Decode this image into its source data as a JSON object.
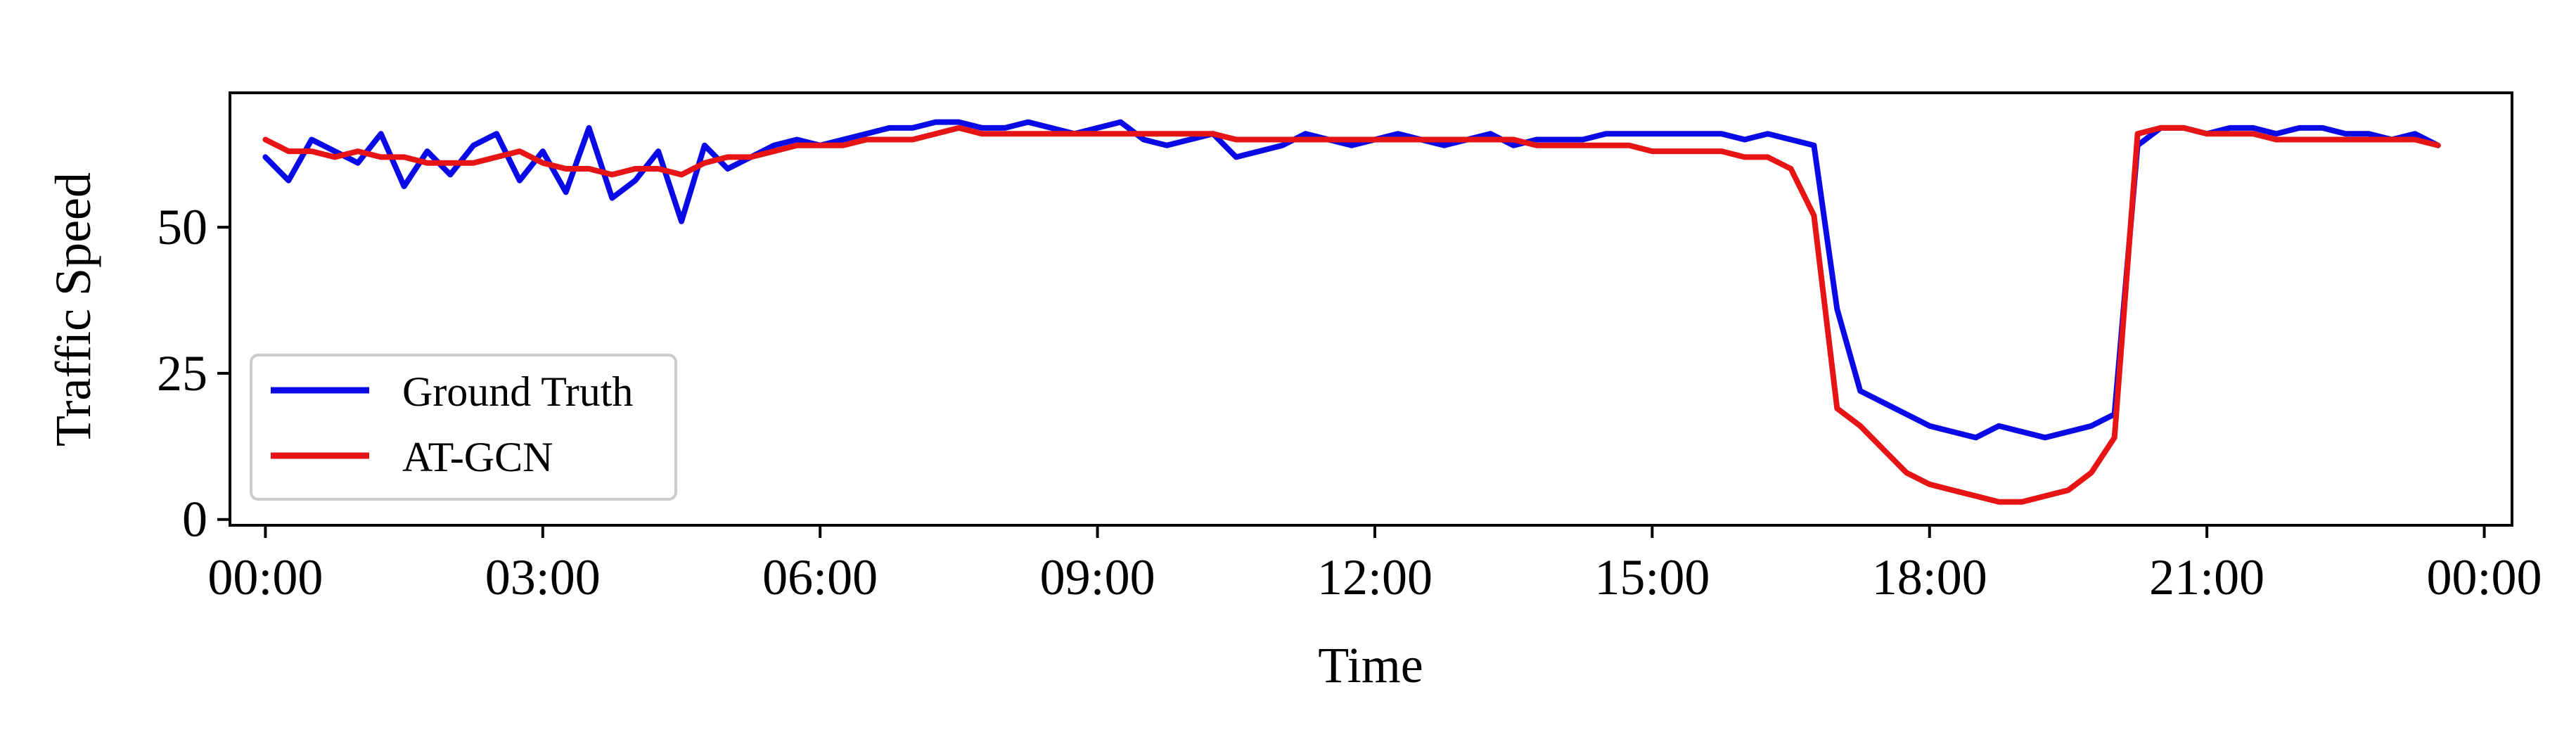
{
  "chart_data": {
    "type": "line",
    "title": "",
    "xlabel": "Time",
    "ylabel": "Traffic Speed",
    "x_unit": "time of day (HH:MM)",
    "xlim": [
      "-00:23",
      "24:18"
    ],
    "ylim": [
      -1,
      73
    ],
    "x_ticks": [
      "00:00",
      "03:00",
      "06:00",
      "09:00",
      "12:00",
      "15:00",
      "18:00",
      "21:00",
      "00:00"
    ],
    "y_ticks": [
      0,
      25,
      50
    ],
    "grid": false,
    "legend": {
      "position": "lower-left",
      "entries": [
        "Ground Truth",
        "AT-GCN"
      ]
    },
    "x": [
      "00:00",
      "00:15",
      "00:30",
      "00:45",
      "01:00",
      "01:15",
      "01:30",
      "01:45",
      "02:00",
      "02:15",
      "02:30",
      "02:45",
      "03:00",
      "03:15",
      "03:30",
      "03:45",
      "04:00",
      "04:15",
      "04:30",
      "04:45",
      "05:00",
      "05:15",
      "05:30",
      "05:45",
      "06:00",
      "06:15",
      "06:30",
      "06:45",
      "07:00",
      "07:15",
      "07:30",
      "07:45",
      "08:00",
      "08:15",
      "08:30",
      "08:45",
      "09:00",
      "09:15",
      "09:30",
      "09:45",
      "10:00",
      "10:15",
      "10:30",
      "10:45",
      "11:00",
      "11:15",
      "11:30",
      "11:45",
      "12:00",
      "12:15",
      "12:30",
      "12:45",
      "13:00",
      "13:15",
      "13:30",
      "13:45",
      "14:00",
      "14:15",
      "14:30",
      "14:45",
      "15:00",
      "15:15",
      "15:30",
      "15:45",
      "16:00",
      "16:15",
      "16:30",
      "16:45",
      "17:00",
      "17:15",
      "17:30",
      "17:45",
      "18:00",
      "18:15",
      "18:30",
      "18:45",
      "19:00",
      "19:15",
      "19:30",
      "19:45",
      "20:00",
      "20:15",
      "20:30",
      "20:45",
      "21:00",
      "21:15",
      "21:30",
      "21:45",
      "22:00",
      "22:15",
      "22:30",
      "22:45",
      "23:00",
      "23:15",
      "23:30"
    ],
    "series": [
      {
        "name": "Ground Truth",
        "color": "#0a0ae6",
        "values": [
          62,
          58,
          65,
          63,
          61,
          66,
          57,
          63,
          59,
          64,
          66,
          58,
          63,
          56,
          67,
          55,
          58,
          63,
          51,
          64,
          60,
          62,
          64,
          65,
          64,
          65,
          66,
          67,
          67,
          68,
          68,
          67,
          67,
          68,
          67,
          66,
          67,
          68,
          65,
          64,
          65,
          66,
          62,
          63,
          64,
          66,
          65,
          64,
          65,
          66,
          65,
          64,
          65,
          66,
          64,
          65,
          65,
          65,
          66,
          66,
          66,
          66,
          66,
          66,
          65,
          66,
          65,
          64,
          36,
          22,
          20,
          18,
          16,
          15,
          14,
          16,
          15,
          14,
          15,
          16,
          18,
          64,
          67,
          67,
          66,
          67,
          67,
          66,
          67,
          67,
          66,
          66,
          65,
          66,
          64
        ]
      },
      {
        "name": "AT-GCN",
        "color": "#e61414",
        "values": [
          65,
          63,
          63,
          62,
          63,
          62,
          62,
          61,
          61,
          61,
          62,
          63,
          61,
          60,
          60,
          59,
          60,
          60,
          59,
          61,
          62,
          62,
          63,
          64,
          64,
          64,
          65,
          65,
          65,
          66,
          67,
          66,
          66,
          66,
          66,
          66,
          66,
          66,
          66,
          66,
          66,
          66,
          65,
          65,
          65,
          65,
          65,
          65,
          65,
          65,
          65,
          65,
          65,
          65,
          65,
          64,
          64,
          64,
          64,
          64,
          63,
          63,
          63,
          63,
          62,
          62,
          60,
          52,
          19,
          16,
          12,
          8,
          6,
          5,
          4,
          3,
          3,
          4,
          5,
          8,
          14,
          66,
          67,
          67,
          66,
          66,
          66,
          65,
          65,
          65,
          65,
          65,
          65,
          65,
          64
        ]
      }
    ]
  }
}
